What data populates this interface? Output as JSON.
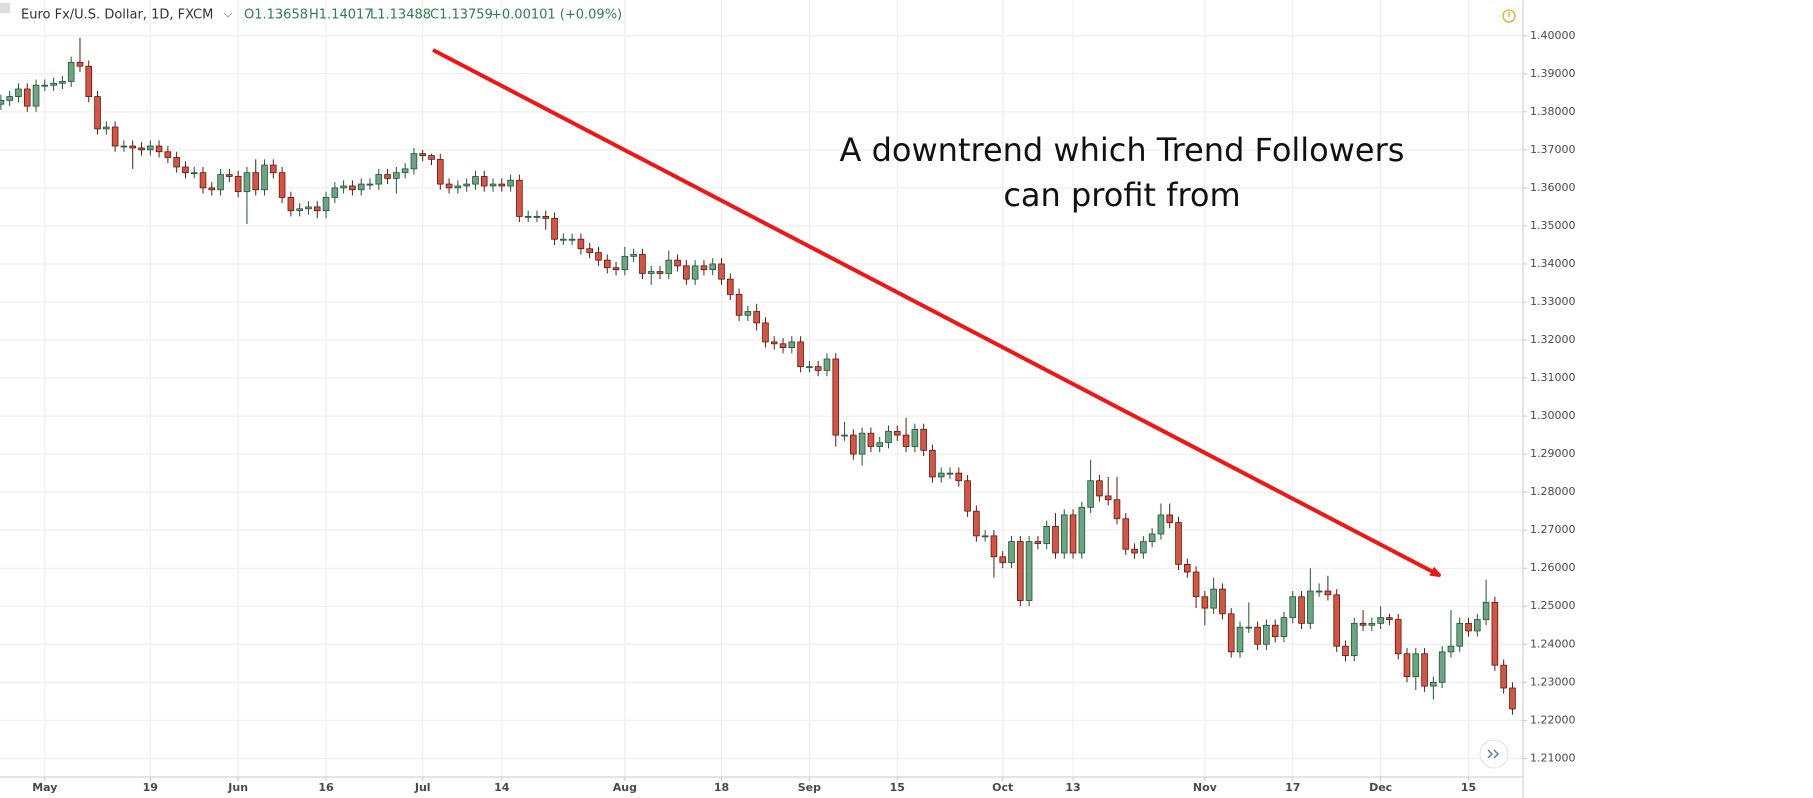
{
  "header": {
    "symbol": "Euro Fx/U.S. Dollar, 1D, FXCM",
    "open": "O1.13658",
    "high": "H1.14017",
    "low": "L1.13488",
    "close": "C1.13759",
    "change": "+0.00101 (+0.09%)"
  },
  "chart_data": {
    "type": "candlestick",
    "annotation": [
      "A downtrend which Trend Followers",
      "can profit from"
    ],
    "up_color": "#6ba583",
    "up_border": "#225437",
    "down_color": "#d75442",
    "down_border": "#5b1a13",
    "grid": true,
    "xlim": [
      -0.1,
      173.2
    ],
    "xticks": [
      {
        "value": 5,
        "label": "May"
      },
      {
        "value": 17,
        "label": "19"
      },
      {
        "value": 27,
        "label": "Jun"
      },
      {
        "value": 37,
        "label": "16"
      },
      {
        "value": 48,
        "label": "Jul"
      },
      {
        "value": 57,
        "label": "14"
      },
      {
        "value": 71,
        "label": "Aug"
      },
      {
        "value": 82,
        "label": "18"
      },
      {
        "value": 92,
        "label": "Sep"
      },
      {
        "value": 102,
        "label": "15"
      },
      {
        "value": 114,
        "label": "Oct"
      },
      {
        "value": 122,
        "label": "13"
      },
      {
        "value": 137,
        "label": "Nov"
      },
      {
        "value": 147,
        "label": "17"
      },
      {
        "value": 157,
        "label": "Dec"
      },
      {
        "value": 167,
        "label": "15"
      }
    ],
    "ylim": [
      1.2051,
      1.4094
    ],
    "yticks": [
      {
        "value": 1.4,
        "label": "1.40000"
      },
      {
        "value": 1.39,
        "label": "1.39000"
      },
      {
        "value": 1.38,
        "label": "1.38000"
      },
      {
        "value": 1.37,
        "label": "1.37000"
      },
      {
        "value": 1.36,
        "label": "1.36000"
      },
      {
        "value": 1.35,
        "label": "1.35000"
      },
      {
        "value": 1.34,
        "label": "1.34000"
      },
      {
        "value": 1.33,
        "label": "1.33000"
      },
      {
        "value": 1.32,
        "label": "1.32000"
      },
      {
        "value": 1.31,
        "label": "1.31000"
      },
      {
        "value": 1.3,
        "label": "1.30000"
      },
      {
        "value": 1.29,
        "label": "1.29000"
      },
      {
        "value": 1.28,
        "label": "1.28000"
      },
      {
        "value": 1.27,
        "label": "1.27000"
      },
      {
        "value": 1.26,
        "label": "1.26000"
      },
      {
        "value": 1.25,
        "label": "1.25000"
      },
      {
        "value": 1.24,
        "label": "1.24000"
      },
      {
        "value": 1.23,
        "label": "1.23000"
      },
      {
        "value": 1.22,
        "label": "1.22000"
      },
      {
        "value": 1.21,
        "label": "1.21000"
      }
    ],
    "open": [
      1.382,
      1.383,
      1.384,
      1.386,
      1.3815,
      1.387,
      1.387,
      1.3875,
      1.388,
      1.393,
      1.392,
      1.384,
      1.3755,
      1.376,
      1.371,
      1.371,
      1.3705,
      1.37,
      1.371,
      1.3695,
      1.368,
      1.3655,
      1.364,
      1.364,
      1.36,
      1.3595,
      1.3635,
      1.363,
      1.359,
      1.364,
      1.3595,
      1.366,
      1.364,
      1.3575,
      1.354,
      1.3545,
      1.355,
      1.354,
      1.3575,
      1.36,
      1.3605,
      1.3595,
      1.361,
      1.361,
      1.3635,
      1.3625,
      1.364,
      1.365,
      1.369,
      1.3685,
      1.3675,
      1.361,
      1.36,
      1.3605,
      1.361,
      1.363,
      1.3605,
      1.361,
      1.3605,
      1.362,
      1.3525,
      1.3525,
      1.3525,
      1.352,
      1.3465,
      1.3465,
      1.3465,
      1.344,
      1.343,
      1.341,
      1.339,
      1.3385,
      1.342,
      1.3425,
      1.3375,
      1.338,
      1.3375,
      1.341,
      1.3395,
      1.336,
      1.3395,
      1.3385,
      1.34,
      1.336,
      1.332,
      1.3265,
      1.3275,
      1.3245,
      1.3195,
      1.319,
      1.318,
      1.3195,
      1.313,
      1.313,
      1.312,
      1.315,
      1.295,
      1.295,
      1.29,
      1.2955,
      1.292,
      1.293,
      1.296,
      1.295,
      1.292,
      1.2965,
      1.291,
      1.284,
      1.285,
      1.285,
      1.283,
      1.275,
      1.2685,
      1.2685,
      1.263,
      1.2615,
      1.267,
      1.2515,
      1.267,
      1.2665,
      1.271,
      1.264,
      1.274,
      1.264,
      1.276,
      1.283,
      1.279,
      1.278,
      1.273,
      1.265,
      1.264,
      1.267,
      1.269,
      1.274,
      1.272,
      1.261,
      1.259,
      1.2525,
      1.2495,
      1.2545,
      1.248,
      1.238,
      1.2445,
      1.2445,
      1.24,
      1.245,
      1.242,
      1.247,
      1.2525,
      1.2455,
      1.254,
      1.254,
      1.253,
      1.2395,
      1.237,
      1.2455,
      1.245,
      1.2455,
      1.247,
      1.2465,
      1.2375,
      1.2315,
      1.2375,
      1.229,
      1.23,
      1.238,
      1.2395,
      1.2455,
      1.2435,
      1.2465,
      1.251,
      1.2345,
      1.2285
    ],
    "high": [
      1.3845,
      1.3855,
      1.3875,
      1.3875,
      1.3885,
      1.3885,
      1.389,
      1.3895,
      1.3945,
      1.3995,
      1.3935,
      1.3855,
      1.3775,
      1.3775,
      1.3725,
      1.3725,
      1.372,
      1.3725,
      1.3725,
      1.371,
      1.3695,
      1.367,
      1.3655,
      1.3655,
      1.3615,
      1.365,
      1.365,
      1.3645,
      1.3655,
      1.3675,
      1.3675,
      1.3675,
      1.3655,
      1.359,
      1.356,
      1.3565,
      1.3565,
      1.359,
      1.3615,
      1.362,
      1.362,
      1.3625,
      1.3625,
      1.365,
      1.365,
      1.3655,
      1.3665,
      1.3705,
      1.37,
      1.369,
      1.369,
      1.3625,
      1.362,
      1.3625,
      1.3645,
      1.3645,
      1.3625,
      1.3625,
      1.3635,
      1.3635,
      1.354,
      1.354,
      1.354,
      1.3535,
      1.348,
      1.348,
      1.348,
      1.3455,
      1.3445,
      1.3425,
      1.3405,
      1.3445,
      1.344,
      1.344,
      1.3395,
      1.3395,
      1.3435,
      1.3425,
      1.341,
      1.341,
      1.341,
      1.3415,
      1.3415,
      1.3375,
      1.3335,
      1.329,
      1.3295,
      1.326,
      1.321,
      1.3205,
      1.321,
      1.321,
      1.3145,
      1.3145,
      1.3165,
      1.3165,
      1.2985,
      1.2965,
      1.297,
      1.297,
      1.2945,
      1.2975,
      1.2975,
      1.2995,
      1.298,
      1.298,
      1.2925,
      1.2865,
      1.2865,
      1.2865,
      1.2845,
      1.2765,
      1.27,
      1.27,
      1.2645,
      1.2685,
      1.2685,
      1.2685,
      1.2685,
      1.2725,
      1.2745,
      1.2755,
      1.2755,
      1.2775,
      1.2885,
      1.2845,
      1.284,
      1.284,
      1.2745,
      1.2665,
      1.2685,
      1.2705,
      1.277,
      1.277,
      1.2735,
      1.2625,
      1.2605,
      1.254,
      1.2575,
      1.256,
      1.2495,
      1.246,
      1.251,
      1.246,
      1.2465,
      1.2465,
      1.2485,
      1.254,
      1.254,
      1.26,
      1.256,
      1.258,
      1.2545,
      1.241,
      1.247,
      1.249,
      1.247,
      1.25,
      1.248,
      1.248,
      1.239,
      1.239,
      1.239,
      1.2315,
      1.2395,
      1.249,
      1.247,
      1.247,
      1.248,
      1.257,
      1.2525,
      1.236,
      1.23
    ],
    "low": [
      1.3805,
      1.3815,
      1.3825,
      1.38,
      1.38,
      1.3855,
      1.3855,
      1.386,
      1.3865,
      1.3905,
      1.3825,
      1.374,
      1.374,
      1.3695,
      1.3695,
      1.365,
      1.3685,
      1.3685,
      1.368,
      1.3665,
      1.364,
      1.3625,
      1.3625,
      1.3585,
      1.358,
      1.358,
      1.3615,
      1.3575,
      1.3505,
      1.358,
      1.358,
      1.3625,
      1.356,
      1.3525,
      1.3525,
      1.353,
      1.352,
      1.352,
      1.356,
      1.3585,
      1.358,
      1.358,
      1.3595,
      1.3595,
      1.361,
      1.3585,
      1.3625,
      1.3635,
      1.367,
      1.366,
      1.3595,
      1.3585,
      1.3585,
      1.359,
      1.3595,
      1.359,
      1.359,
      1.359,
      1.359,
      1.351,
      1.351,
      1.351,
      1.349,
      1.345,
      1.345,
      1.345,
      1.3425,
      1.3415,
      1.3395,
      1.3375,
      1.337,
      1.337,
      1.3405,
      1.336,
      1.3345,
      1.336,
      1.336,
      1.338,
      1.3345,
      1.3345,
      1.337,
      1.337,
      1.3345,
      1.3305,
      1.325,
      1.325,
      1.3225,
      1.318,
      1.3175,
      1.3165,
      1.3165,
      1.3115,
      1.3115,
      1.3105,
      1.3105,
      1.292,
      1.2935,
      1.2885,
      1.287,
      1.2905,
      1.2905,
      1.2915,
      1.2935,
      1.2905,
      1.2905,
      1.2895,
      1.2825,
      1.2825,
      1.2835,
      1.2815,
      1.2735,
      1.267,
      1.267,
      1.2575,
      1.26,
      1.26,
      1.25,
      1.25,
      1.265,
      1.265,
      1.2625,
      1.2625,
      1.2625,
      1.2625,
      1.2745,
      1.2775,
      1.2765,
      1.2715,
      1.2635,
      1.2625,
      1.2625,
      1.2655,
      1.2675,
      1.2705,
      1.2595,
      1.2575,
      1.2495,
      1.245,
      1.248,
      1.2465,
      1.2365,
      1.2365,
      1.243,
      1.2385,
      1.2385,
      1.2405,
      1.2405,
      1.2455,
      1.244,
      1.244,
      1.2525,
      1.2515,
      1.238,
      1.2355,
      1.2355,
      1.2435,
      1.2435,
      1.244,
      1.245,
      1.236,
      1.23,
      1.228,
      1.2275,
      1.2255,
      1.2285,
      1.2365,
      1.238,
      1.242,
      1.242,
      1.245,
      1.233,
      1.227,
      1.2215
    ],
    "close": [
      1.383,
      1.384,
      1.386,
      1.3815,
      1.387,
      1.387,
      1.3875,
      1.388,
      1.393,
      1.392,
      1.384,
      1.3755,
      1.376,
      1.371,
      1.371,
      1.3705,
      1.37,
      1.371,
      1.3695,
      1.368,
      1.3655,
      1.364,
      1.364,
      1.36,
      1.3595,
      1.3635,
      1.363,
      1.359,
      1.364,
      1.3595,
      1.366,
      1.364,
      1.3575,
      1.354,
      1.3545,
      1.355,
      1.354,
      1.3575,
      1.36,
      1.3605,
      1.3595,
      1.361,
      1.361,
      1.3635,
      1.3625,
      1.364,
      1.365,
      1.369,
      1.3685,
      1.3675,
      1.361,
      1.36,
      1.3605,
      1.361,
      1.363,
      1.3605,
      1.361,
      1.3605,
      1.362,
      1.3525,
      1.3525,
      1.3525,
      1.352,
      1.3465,
      1.3465,
      1.3465,
      1.344,
      1.343,
      1.341,
      1.339,
      1.3385,
      1.342,
      1.3425,
      1.3375,
      1.338,
      1.3375,
      1.341,
      1.3395,
      1.336,
      1.3395,
      1.3385,
      1.34,
      1.336,
      1.332,
      1.3265,
      1.3275,
      1.3245,
      1.3195,
      1.319,
      1.318,
      1.3195,
      1.313,
      1.313,
      1.312,
      1.315,
      1.295,
      1.295,
      1.29,
      1.2955,
      1.292,
      1.293,
      1.296,
      1.295,
      1.292,
      1.2965,
      1.291,
      1.284,
      1.285,
      1.285,
      1.283,
      1.275,
      1.2685,
      1.2685,
      1.263,
      1.2615,
      1.267,
      1.2515,
      1.267,
      1.2665,
      1.271,
      1.264,
      1.274,
      1.264,
      1.276,
      1.283,
      1.279,
      1.278,
      1.273,
      1.265,
      1.264,
      1.267,
      1.269,
      1.274,
      1.272,
      1.261,
      1.259,
      1.2525,
      1.2495,
      1.2545,
      1.248,
      1.238,
      1.2445,
      1.2445,
      1.24,
      1.245,
      1.242,
      1.247,
      1.2525,
      1.2455,
      1.254,
      1.254,
      1.253,
      1.2395,
      1.237,
      1.2455,
      1.245,
      1.2455,
      1.247,
      1.2465,
      1.2375,
      1.2315,
      1.2375,
      1.229,
      1.23,
      1.238,
      1.2395,
      1.2455,
      1.2435,
      1.2465,
      1.251,
      1.2345,
      1.2285,
      1.223
    ]
  }
}
